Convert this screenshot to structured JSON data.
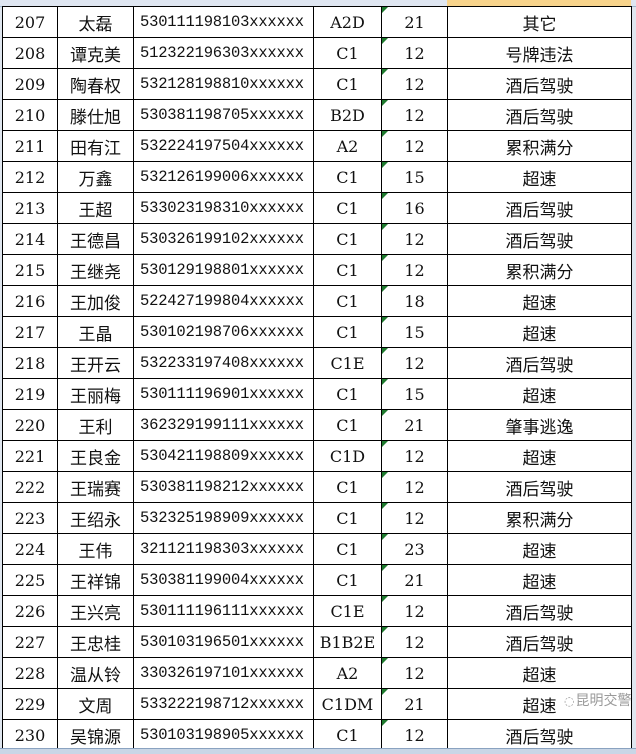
{
  "rows": [
    {
      "no": "207",
      "name": "太磊",
      "id": "530111198103xxxxxx",
      "lic": "A2D",
      "pts": "21",
      "reason": "其它"
    },
    {
      "no": "208",
      "name": "谭克美",
      "id": "512322196303xxxxxx",
      "lic": "C1",
      "pts": "12",
      "reason": "号牌违法"
    },
    {
      "no": "209",
      "name": "陶春权",
      "id": "532128198810xxxxxx",
      "lic": "C1",
      "pts": "12",
      "reason": "酒后驾驶"
    },
    {
      "no": "210",
      "name": "滕仕旭",
      "id": "530381198705xxxxxx",
      "lic": "B2D",
      "pts": "12",
      "reason": "酒后驾驶"
    },
    {
      "no": "211",
      "name": "田有江",
      "id": "532224197504xxxxxx",
      "lic": "A2",
      "pts": "12",
      "reason": "累积满分"
    },
    {
      "no": "212",
      "name": "万鑫",
      "id": "532126199006xxxxxx",
      "lic": "C1",
      "pts": "15",
      "reason": "超速"
    },
    {
      "no": "213",
      "name": "王超",
      "id": "533023198310xxxxxx",
      "lic": "C1",
      "pts": "16",
      "reason": "酒后驾驶"
    },
    {
      "no": "214",
      "name": "王德昌",
      "id": "530326199102xxxxxx",
      "lic": "C1",
      "pts": "12",
      "reason": "酒后驾驶"
    },
    {
      "no": "215",
      "name": "王继尧",
      "id": "530129198801xxxxxx",
      "lic": "C1",
      "pts": "12",
      "reason": "累积满分"
    },
    {
      "no": "216",
      "name": "王加俊",
      "id": "522427199804xxxxxx",
      "lic": "C1",
      "pts": "18",
      "reason": "超速"
    },
    {
      "no": "217",
      "name": "王晶",
      "id": "530102198706xxxxxx",
      "lic": "C1",
      "pts": "15",
      "reason": "超速"
    },
    {
      "no": "218",
      "name": "王开云",
      "id": "532233197408xxxxxx",
      "lic": "C1E",
      "pts": "12",
      "reason": "酒后驾驶"
    },
    {
      "no": "219",
      "name": "王丽梅",
      "id": "530111196901xxxxxx",
      "lic": "C1",
      "pts": "15",
      "reason": "超速"
    },
    {
      "no": "220",
      "name": "王利",
      "id": "362329199111xxxxxx",
      "lic": "C1",
      "pts": "21",
      "reason": "肇事逃逸"
    },
    {
      "no": "221",
      "name": "王良金",
      "id": "530421198809xxxxxx",
      "lic": "C1D",
      "pts": "12",
      "reason": "超速"
    },
    {
      "no": "222",
      "name": "王瑞赛",
      "id": "530381198212xxxxxx",
      "lic": "C1",
      "pts": "12",
      "reason": "酒后驾驶"
    },
    {
      "no": "223",
      "name": "王绍永",
      "id": "532325198909xxxxxx",
      "lic": "C1",
      "pts": "12",
      "reason": "累积满分"
    },
    {
      "no": "224",
      "name": "王伟",
      "id": "321121198303xxxxxx",
      "lic": "C1",
      "pts": "23",
      "reason": "超速"
    },
    {
      "no": "225",
      "name": "王祥锦",
      "id": "530381199004xxxxxx",
      "lic": "C1",
      "pts": "21",
      "reason": "超速"
    },
    {
      "no": "226",
      "name": "王兴亮",
      "id": "530111196111xxxxxx",
      "lic": "C1E",
      "pts": "12",
      "reason": "酒后驾驶"
    },
    {
      "no": "227",
      "name": "王忠桂",
      "id": "530103196501xxxxxx",
      "lic": "B1B2E",
      "pts": "12",
      "reason": "酒后驾驶"
    },
    {
      "no": "228",
      "name": "温从铃",
      "id": "330326197101xxxxxx",
      "lic": "A2",
      "pts": "12",
      "reason": "超速"
    },
    {
      "no": "229",
      "name": "文周",
      "id": "533222198712xxxxxx",
      "lic": "C1DM",
      "pts": "21",
      "reason": "超速"
    },
    {
      "no": "230",
      "name": "吴锦源",
      "id": "530103198905xxxxxx",
      "lic": "C1",
      "pts": "12",
      "reason": "酒后驾驶"
    }
  ],
  "watermark": "昆明交警",
  "colors": {
    "grid": "#000000",
    "header_selected": "#f8d48c",
    "comment_marker": "#1e7a2e"
  }
}
